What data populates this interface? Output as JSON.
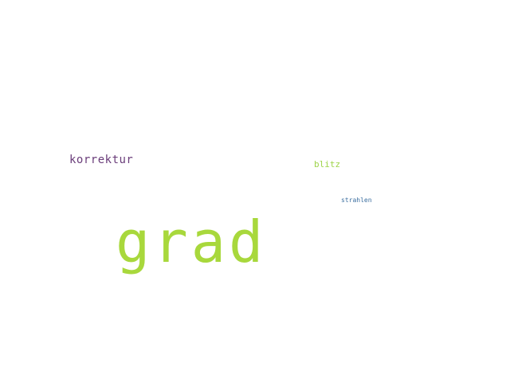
{
  "words": [
    {
      "text": "korrektur",
      "color": "#6a3d7a"
    },
    {
      "text": "blitz",
      "color": "#9ed449"
    },
    {
      "text": "strahlen",
      "color": "#3c6fa0"
    },
    {
      "text": "grad",
      "color": "#a8d83c"
    }
  ]
}
